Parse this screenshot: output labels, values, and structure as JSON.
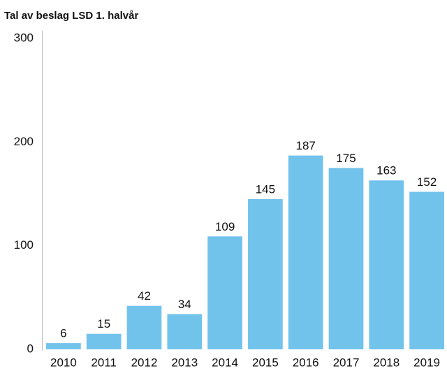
{
  "chart_data": {
    "type": "bar",
    "title": "Tal av beslag LSD 1. halvår",
    "categories": [
      "2010",
      "2011",
      "2012",
      "2013",
      "2014",
      "2015",
      "2016",
      "2017",
      "2018",
      "2019"
    ],
    "values": [
      6,
      15,
      42,
      34,
      109,
      145,
      187,
      175,
      163,
      152
    ],
    "color": "#72c3ec",
    "ylim": [
      0,
      300
    ],
    "yticks": [
      0,
      100,
      200,
      300
    ],
    "grid": false
  }
}
